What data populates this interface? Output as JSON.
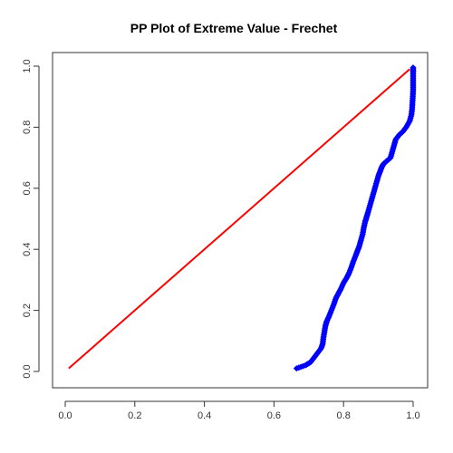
{
  "chart_data": {
    "type": "scatter",
    "title": "PP Plot of Extreme Value - Frechet",
    "xlabel": "",
    "ylabel": "",
    "xlim": [
      0.0,
      1.0
    ],
    "ylim": [
      0.0,
      1.0
    ],
    "x_ticks": [
      "0.0",
      "0.2",
      "0.4",
      "0.6",
      "0.8",
      "1.0"
    ],
    "y_ticks": [
      "0.0",
      "0.2",
      "0.4",
      "0.6",
      "0.8",
      "1.0"
    ],
    "grid": false,
    "legend": "none",
    "reference_line": {
      "color": "#ff0000",
      "x": [
        0.01,
        0.99
      ],
      "y": [
        0.01,
        0.99
      ]
    },
    "series": [
      {
        "color": "#0000ff",
        "x": [
          0.665,
          0.69,
          0.705,
          0.715,
          0.725,
          0.735,
          0.74,
          0.742,
          0.745,
          0.748,
          0.752,
          0.758,
          0.765,
          0.772,
          0.778,
          0.785,
          0.792,
          0.8,
          0.808,
          0.815,
          0.822,
          0.828,
          0.835,
          0.84,
          0.845,
          0.85,
          0.855,
          0.858,
          0.862,
          0.866,
          0.87,
          0.875,
          0.88,
          0.885,
          0.89,
          0.895,
          0.9,
          0.905,
          0.91,
          0.915,
          0.925,
          0.935,
          0.94,
          0.945,
          0.95,
          0.96,
          0.97,
          0.98,
          0.99,
          0.995,
          0.997,
          0.998,
          0.999,
          1.0,
          1.0,
          1.0,
          1.0,
          1.0
        ],
        "y": [
          0.01,
          0.02,
          0.03,
          0.045,
          0.06,
          0.075,
          0.09,
          0.11,
          0.13,
          0.15,
          0.165,
          0.18,
          0.2,
          0.22,
          0.24,
          0.255,
          0.27,
          0.29,
          0.305,
          0.32,
          0.34,
          0.36,
          0.38,
          0.395,
          0.41,
          0.43,
          0.45,
          0.47,
          0.49,
          0.505,
          0.52,
          0.54,
          0.56,
          0.58,
          0.6,
          0.62,
          0.64,
          0.655,
          0.67,
          0.68,
          0.69,
          0.7,
          0.72,
          0.74,
          0.76,
          0.775,
          0.785,
          0.8,
          0.82,
          0.84,
          0.86,
          0.88,
          0.9,
          0.92,
          0.94,
          0.96,
          0.98,
          0.995
        ]
      }
    ]
  }
}
